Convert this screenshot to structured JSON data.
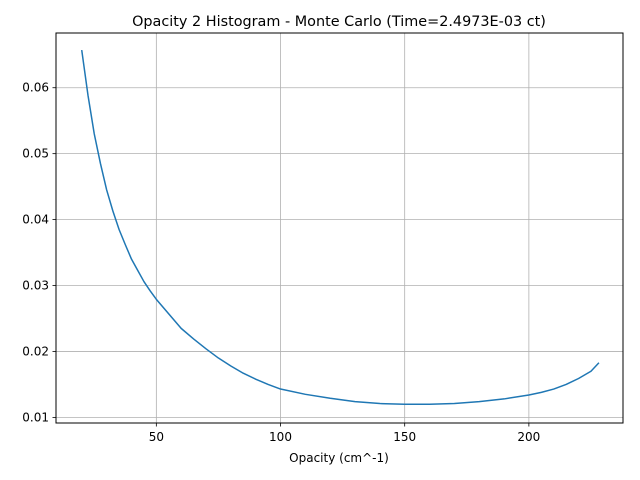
{
  "chart_data": {
    "type": "line",
    "title": "Opacity 2 Histogram - Monte Carlo (Time=2.4973E-03 ct)",
    "xlabel": "Opacity (cm^-1)",
    "ylabel": "",
    "xlim": [
      9.6,
      237.9
    ],
    "ylim": [
      0.00915,
      0.0683
    ],
    "x_ticks": [
      50,
      100,
      150,
      200
    ],
    "y_ticks": [
      0.01,
      0.02,
      0.03,
      0.04,
      0.05,
      0.06
    ],
    "x_tick_labels": [
      "50",
      "100",
      "150",
      "200"
    ],
    "y_tick_labels": [
      "0.01",
      "0.02",
      "0.03",
      "0.04",
      "0.05",
      "0.06"
    ],
    "grid": true,
    "series": [
      {
        "color": "#1f77b4",
        "x": [
          20.0,
          22.5,
          25.0,
          27.5,
          30.0,
          32.5,
          35.0,
          37.5,
          40.0,
          42.5,
          45.0,
          47.5,
          50.0,
          55.0,
          60.0,
          65.0,
          70.0,
          75.0,
          80.0,
          85.0,
          90.0,
          95.0,
          100.0,
          110.0,
          120.0,
          130.0,
          140.0,
          150.0,
          155.0,
          160.0,
          170.0,
          180.0,
          190.0,
          200.0,
          205.0,
          210.0,
          215.0,
          220.0,
          225.0,
          228.0
        ],
        "y": [
          0.0656,
          0.0588,
          0.053,
          0.0485,
          0.0445,
          0.0413,
          0.0385,
          0.0362,
          0.034,
          0.0323,
          0.0306,
          0.0292,
          0.0279,
          0.0257,
          0.0235,
          0.0219,
          0.0204,
          0.019,
          0.0178,
          0.0167,
          0.0158,
          0.015,
          0.0143,
          0.0135,
          0.0129,
          0.0124,
          0.0121,
          0.012,
          0.012,
          0.012,
          0.0121,
          0.0124,
          0.0128,
          0.0134,
          0.0138,
          0.0143,
          0.015,
          0.0159,
          0.017,
          0.0182
        ]
      }
    ]
  }
}
